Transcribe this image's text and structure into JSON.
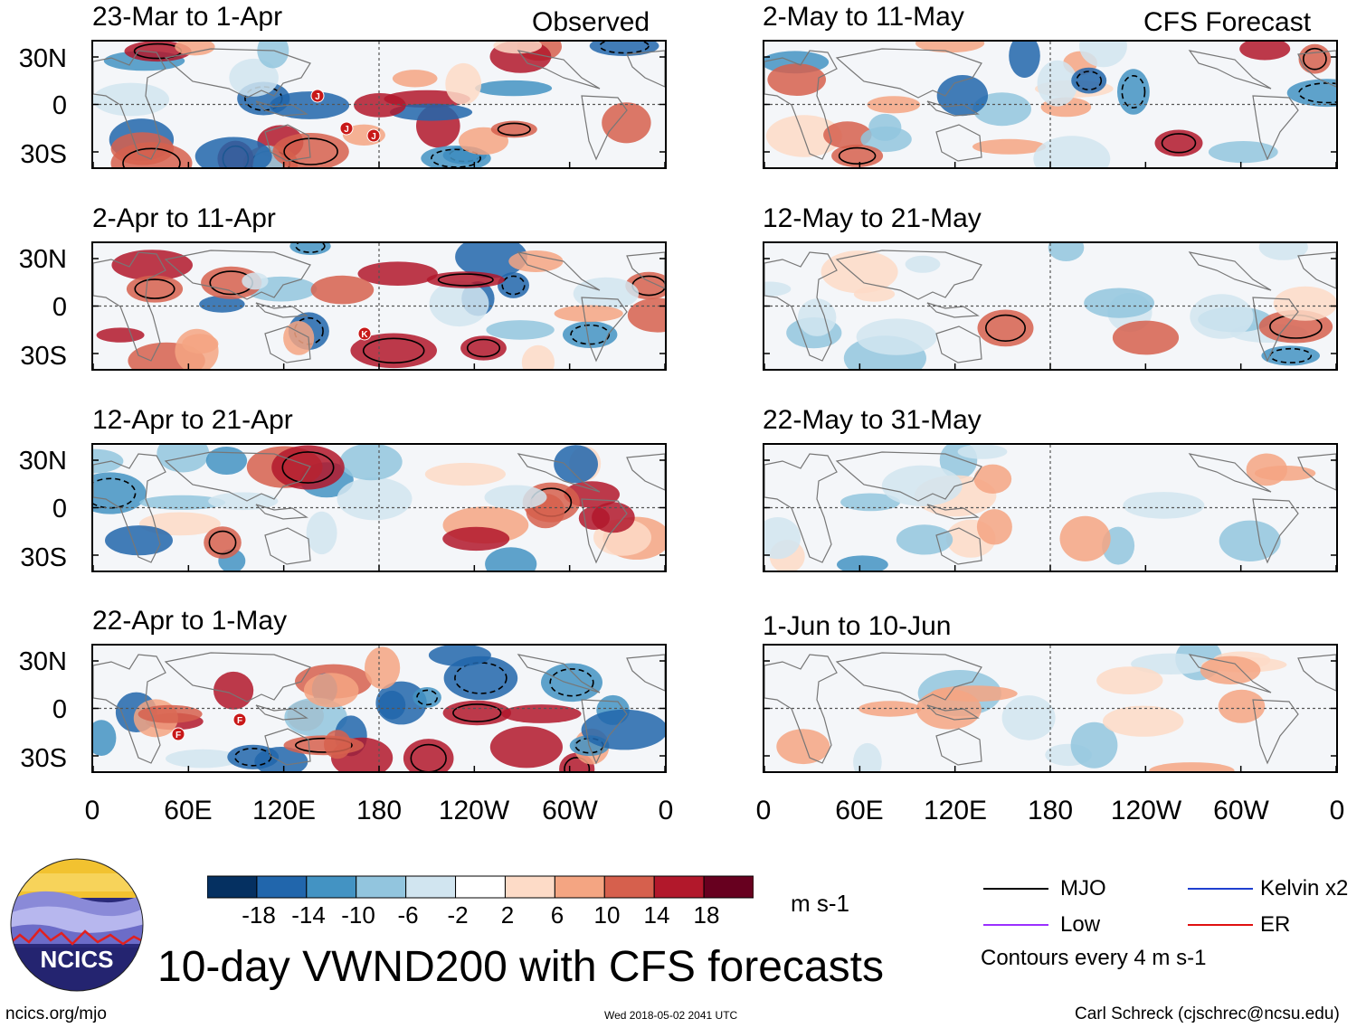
{
  "chart_data": {
    "type": "heatmap",
    "title": "10-day VWND200 with CFS forecasts",
    "units": "m s-1",
    "column_headers": [
      "Observed",
      "CFS Forecast"
    ],
    "observed_panels": [
      {
        "title": "23-Mar to 1-Apr",
        "storm_labels": [
          "J",
          "J",
          "J"
        ]
      },
      {
        "title": "2-Apr to 11-Apr",
        "storm_labels": [
          "K"
        ]
      },
      {
        "title": "12-Apr to 21-Apr",
        "storm_labels": []
      },
      {
        "title": "22-Apr to 1-May",
        "storm_labels": [
          "F",
          "F"
        ]
      }
    ],
    "forecast_panels": [
      {
        "title": "2-May to 11-May"
      },
      {
        "title": "12-May to 21-May"
      },
      {
        "title": "22-May to 31-May"
      },
      {
        "title": "1-Jun to 10-Jun"
      }
    ],
    "y_ticks": [
      "30N",
      "0",
      "30S"
    ],
    "x_ticks": [
      "0",
      "60E",
      "120E",
      "180",
      "120W",
      "60W",
      "0"
    ],
    "colorbar": {
      "labels": [
        "-18",
        "-14",
        "-10",
        "-6",
        "-2",
        "2",
        "6",
        "10",
        "14",
        "18"
      ],
      "colors": [
        "#053061",
        "#2166ac",
        "#4393c3",
        "#92c5de",
        "#d1e5f0",
        "#ffffff",
        "#fddbc7",
        "#f4a582",
        "#d6604d",
        "#b2182b",
        "#67001f"
      ]
    },
    "legend": {
      "items": [
        {
          "label": "MJO",
          "color": "#000000"
        },
        {
          "label": "Kelvin x2",
          "color": "#1f3fd0"
        },
        {
          "label": "Low",
          "color": "#9b30ff"
        },
        {
          "label": "ER",
          "color": "#e01010"
        }
      ],
      "note": "Contours every 4 m s-1"
    }
  },
  "logo": {
    "text": "NCICS"
  },
  "footer": {
    "url": "ncics.org/mjo",
    "timestamp": "Wed 2018-05-02 2041 UTC",
    "credit": "Carl Schreck (cjschrec@ncsu.edu)"
  }
}
